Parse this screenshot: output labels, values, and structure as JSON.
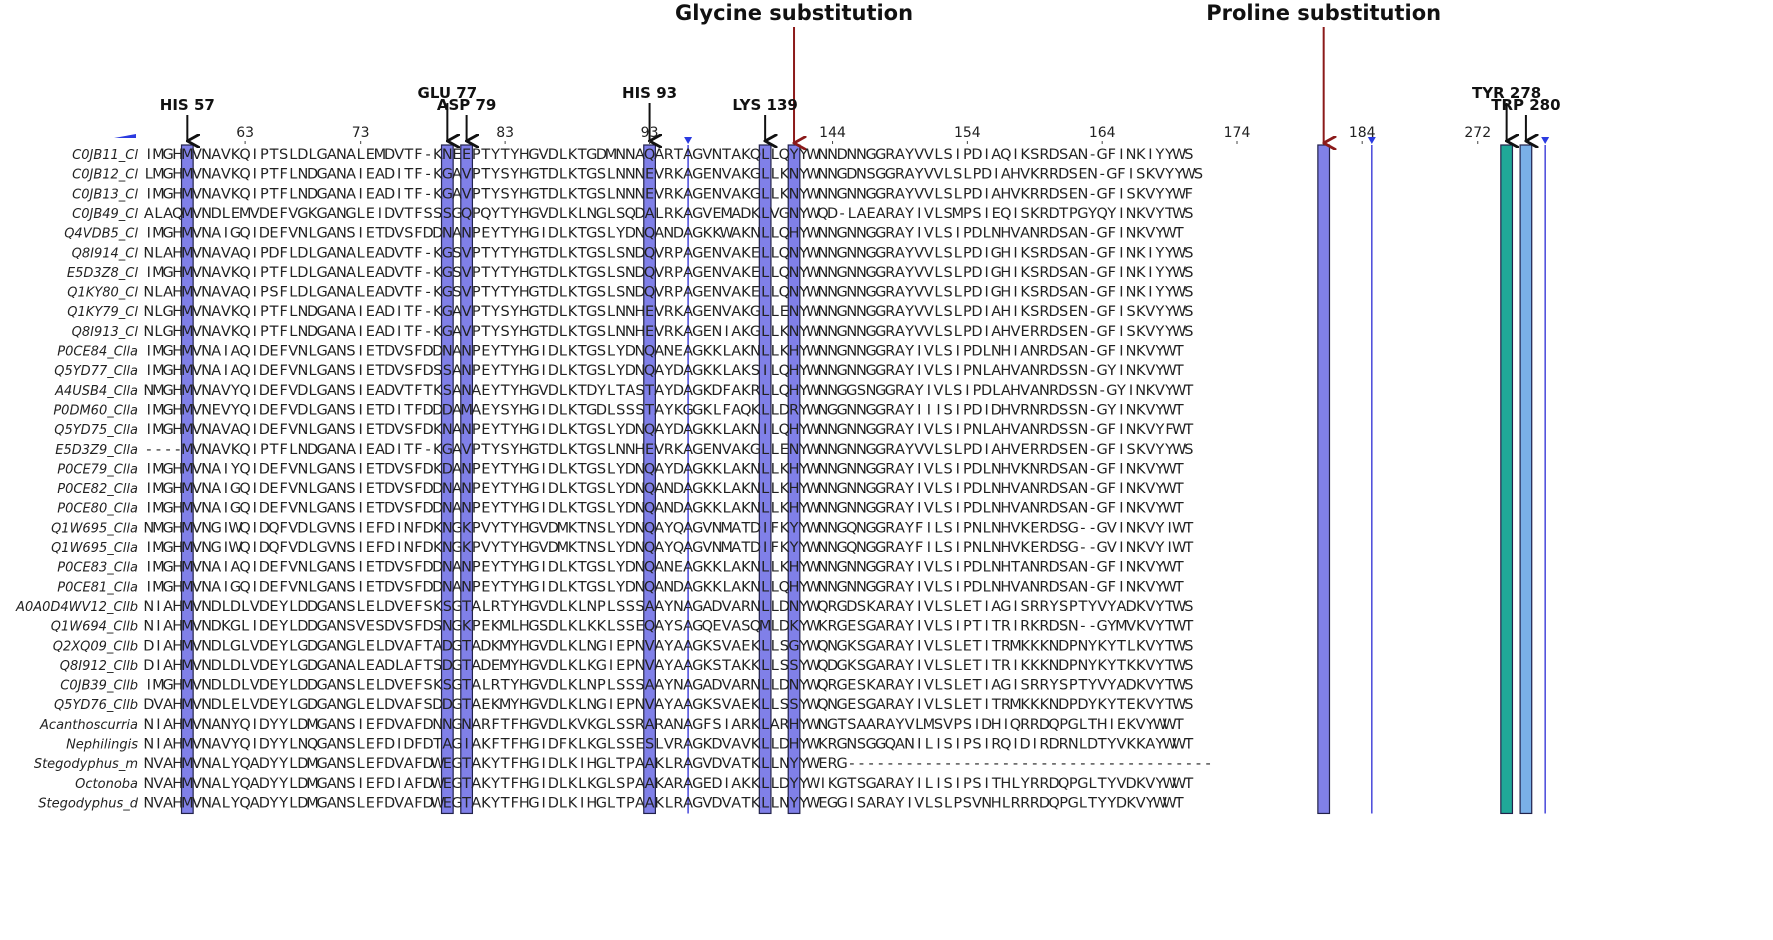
{
  "headers": [
    {
      "label": "Glycine substitution",
      "col": 67,
      "arrow_color": "#8b1a1a"
    },
    {
      "label": "Proline substitution",
      "col": 122,
      "arrow_color": "#8b1a1a"
    }
  ],
  "residue_labels": [
    {
      "label": "HIS 57",
      "col": 4
    },
    {
      "label": "GLU 77",
      "col": 31
    },
    {
      "label": "ASP 79",
      "col": 33
    },
    {
      "label": "HIS 93",
      "col": 52
    },
    {
      "label": "LYS 139",
      "col": 64
    },
    {
      "label": "TYR 278",
      "col": 141
    },
    {
      "label": "TRP 280",
      "col": 143
    }
  ],
  "ruler": [
    {
      "label": "63",
      "col": 10
    },
    {
      "label": "73",
      "col": 22
    },
    {
      "label": "83",
      "col": 37
    },
    {
      "label": "93",
      "col": 52
    },
    {
      "label": "144",
      "col": 71
    },
    {
      "label": "154",
      "col": 85
    },
    {
      "label": "164",
      "col": 99
    },
    {
      "label": "174",
      "col": 113
    },
    {
      "label": "184",
      "col": 126
    },
    {
      "label": "272",
      "col": 138
    }
  ],
  "highlight_columns": [
    {
      "col": 4,
      "color": "#8080e8"
    },
    {
      "col": 31,
      "color": "#8080e8"
    },
    {
      "col": 33,
      "color": "#8080e8"
    },
    {
      "col": 52,
      "color": "#8080e8"
    },
    {
      "col": 64,
      "color": "#8080e8"
    },
    {
      "col": 67,
      "color": "#8080e8"
    },
    {
      "col": 122,
      "color": "#8080e8"
    },
    {
      "col": 141,
      "color": "#20a898"
    },
    {
      "col": 143,
      "color": "#7ab0e8"
    }
  ],
  "separator_columns": [
    56,
    127,
    145
  ],
  "sequences": [
    {
      "name": "C0JB11_Cl",
      "seq": "IMGHMVNAVKQIPTSLDLGANALEMDVTF-KNEEPTYTYHGVDLKTGDMNNAQARTAGVNTAKQLLQYYWNNDNNGGRAYVVLSIPDIAQIKSRDSAN-GFINKIYYWS"
    },
    {
      "name": "C0JB12_Cl",
      "seq": "LMGHMVNAVKQIPTFLNDGANAIEADITF-KGAVPTYSYHGTDLKTGSLNNNEVRKAGENVAKGLLKNYWNNGDNSGGRAYVVLSLPDIAHVKRRDSEN-GFISKVYYWS"
    },
    {
      "name": "C0JB13_Cl",
      "seq": "IMGHMVNAVKQIPTFLNDGANAIEADITF-KGAVPTYSYHGTDLKTGSLNNNEVRKAGENVAKGLLKNYWNNGNNGGRAYVVLSLPDIAHVKRRDSEN-GFISKVYYWF"
    },
    {
      "name": "C0JB49_Cl",
      "seq": "ALAQMVNDLEMVDEFVGKGANGLEIDVTFSSSGQPQYTYHGVDLKLNGLSQDALRKAGVEMADKLVGNYWQD-LAEARAYIVLSMPSIEQISKRDTPGYQYINKVYTWS"
    },
    {
      "name": "Q4VDB5_Cl",
      "seq": "IMGHMVNAIGQIDEFVNLGANSIETDVSFDDNANPEYTYHGIDLKTGSLYDNQANDAGKKWAKNLLQHYWNNGNNGGRAYIVLSIPDLNHVANRDSAN-GFINKVYWT"
    },
    {
      "name": "Q8I914_Cl",
      "seq": "NLAHMVNAVAQIPDFLDLGANALEADVTF-KGSVPTYTYHGTDLKTGSLSNDQVRPAGENVAKELLQNYWNNGNNGGRAYVVLSLPDIGHIKSRDSAN-GFINKIYYWS"
    },
    {
      "name": "E5D3Z8_Cl",
      "seq": "IMGHMVNAVKQIPTFLDLGANALEADVTF-KGSVPTYTYHGTDLKTGSLSNDQVRPAGENVAKELLQNYWNNGNNGGRAYVVLSLPDIGHIKSRDSAN-GFINKIYYWS"
    },
    {
      "name": "Q1KY80_Cl",
      "seq": "NLAHMVNAVAQIPSFLDLGANALEADVTF-KGSVPTYTYHGTDLKTGSLSNDQVRPAGENVAKELLQNYWNNGNNGGRAYVVLSLPDIGHIKSRDSAN-GFINKIYYWS"
    },
    {
      "name": "Q1KY79_Cl",
      "seq": "NLGHMVNAVKQIPTFLNDGANAIEADITF-KGAVPTYSYHGTDLKTGSLNNHEVRKAGENVAKGLLENYWNNGNNGGRAYVVLSLPDIAHIKSRDSEN-GFISKVYYWS"
    },
    {
      "name": "Q8I913_Cl",
      "seq": "NLGHMVNAVKQIPTFLNDGANAIEADITF-KGAVPTYSYHGTDLKTGSLNNHEVRKAGENIAKGLLKNYWNNGNNGGRAYVVLSLPDIAHVERRDSEN-GFISKVYYWS"
    },
    {
      "name": "P0CE84_Clla",
      "seq": "IMGHMVNAIAQIDEFVNLGANSIETDVSFDDNANPEYTYHGIDLKTGSLYDNQANEAGKKLAKNLLKHYWNNGNNGGRAYIVLSIPDLNHIANRDSAN-GFINKVYWT"
    },
    {
      "name": "Q5YD77_Clla",
      "seq": "IMGHMVNAIAQIDEFVNLGANSIETDVSFDSSANPEYTYHGIDLKTGSLYDNQAYDAGKKLAKSILQHYWNNGNNGGRAYIVLSIPNLAHVANRDSSN-GYINKVYWT"
    },
    {
      "name": "A4USB4_Clla",
      "seq": "NMGHMVNAVYQIDEFVDLGANSIEADVTFTKSANAEYTYHGVDLKTDYLTASTAYDAGKDFAKRLLQHYWNNGGSNGGRAYIVLSIPDLAHVANRDSSN-GYINKVYWT"
    },
    {
      "name": "P0DM60_Clla",
      "seq": "IMGHMVNEVYQIDEFVDLGANSIETDITFDDDAMAEYSYHGIDLKTGDLSSSTAYKGGKLFAQKLLDRYWNGGNNGGRAYIIISIPDIDHVRNRDSSN-GYINKVYWT"
    },
    {
      "name": "Q5YD75_Clla",
      "seq": "IMGHMVNAVAQIDEFVNLGANSIETDVSFDKNANPEYTYHGIDLKTGSLYDNQAYDAGKKLAKNILQHYWNNGNNGGRAYIVLSIPNLAHVANRDSSN-GFINKVYFWT"
    },
    {
      "name": "E5D3Z9_Clla",
      "seq": "----MVNAVKQIPTFLNDGANAIEADITF-KGAVPTYSYHGTDLKTGSLNNHEVRKAGENVAKGLLENYWNNGNNGGRAYVVLSLPDIAHVERRDSEN-GFISKVYYWS"
    },
    {
      "name": "P0CE79_Clla",
      "seq": "IMGHMVNAIYQIDEFVNLGANSIETDVSFDKDANPEYTYHGIDLKTGSLYDNQAYDAGKKLAKNLLKHYWNNGNNGGRAYIVLSIPDLNHVKNRDSAN-GFINKVYWT"
    },
    {
      "name": "P0CE82_Clla",
      "seq": "IMGHMVNAIGQIDEFVNLGANSIETDVSFDDNANPEYTYHGIDLKTGSLYDNQANDAGKKLAKNLLKHYWNNGNNGGRAYIVLSIPDLNHVANRDSAN-GFINKVYWT"
    },
    {
      "name": "P0CE80_Clla",
      "seq": "IMGHMVNAIGQIDEFVNLGANSIETDVSFDDNANPEYTYHGIDLKTGSLYDNQANDAGKKLAKNLLKHYWNNGNNGGRAYIVLSIPDLNHVANRDSAN-GFINKVYWT"
    },
    {
      "name": "Q1W695_Clla",
      "seq": "NMGHMVNGIWQIDQFVDLGVNSIEFDINFDKNGKPVYTYHGVDMKTNSLYDNQAYQAGVNMATDIFKYYWNNGQNGGRAYFILSIPNLNHVKERDSG--GVINKVYIWT"
    },
    {
      "name": "Q1W695_Clla",
      "seq": "IMGHMVNGIWQIDQFVDLGVNSIEFDINFDKNGKPVYTYHGVDMKTNSLYDNQAYQAGVNMATDIFKYYWNNGQNGGRAYFILSIPNLNHVKERDSG--GVINKVYIWT"
    },
    {
      "name": "P0CE83_Clla",
      "seq": "IMGHMVNAIAQIDEFVNLGANSIETDVSFDDNANPEYTYHGIDLKTGSLYDNQANEAGKKLAKNLLKHYWNNGNNGGRAYIVLSIPDLNHTANRDSAN-GFINKVYWT"
    },
    {
      "name": "P0CE81_Clla",
      "seq": "IMGHMVNAIGQIDEFVNLGANSIETDVSFDDNANPEYTYHGIDLKTGSLYDNQANDAGKKLAKNLLQHYWNNGNNGGRAYIVLSIPDLNHVANRDSAN-GFINKVYWT"
    },
    {
      "name": "A0A0D4WV12_Cllb",
      "seq": "NIAHMVNDLDLVDEYLDDGANSLELDVEFSKSGTALRTYHGVDLKLNPLSSSAAYNAGADVARNLLDNYWQRGDSKARAYIVLSLETIAGISRRYSPTYVYADKVYTWS"
    },
    {
      "name": "Q1W694_Cllb",
      "seq": "NIAHMVNDKGLIDEYLDDGANSVESDVSFDSNGKPEKMLHGSDLKLKKLSSEQAYSAGQEVASQMLDKYWKRGESGARAYIVLSIPTITRIRKRDSN--GYMVKVYTWT"
    },
    {
      "name": "Q2XQ09_Cllb",
      "seq": "DIAHMVNDLGLVDEYLGDGANGLELDVAFTADGTADKMYHGVDLKLNGIEPNVAYAAGKSVAEKLLSGYWQNGKSGARAYIVLSLETITRMKKKNDPNYKYTLKVYTWS"
    },
    {
      "name": "Q8I912_Cllb",
      "seq": "DIAHMVNDLDLVDEYLGDGANALEADLAFTSDGTADEMYHGVDLKLKGIEPNVAYAAGKSTAKKLLSSYWQDGKSGARAYIVLSLETITRIKKKNDPNYKYTKKVYTWS"
    },
    {
      "name": "C0JB39_Cllb",
      "seq": "IMGHMVNDLDLVDEYLDDGANSLELDVEFSKSGTALRTYHGVDLKLNPLSSSAAYNAGADVARNLLDNYWQRGESKARAYIVLSLETIAGISRRYSPTYVYADKVYTWS"
    },
    {
      "name": "Q5YD76_Cllb",
      "seq": "DVAHMVNDLELVDEYLGDGANGLELDVAFSDDGTAEKMYHGVDLKLNGIEPNVAYAAGKSVAEKLLSSYWQNGESGARAYIVLSLETITRMKKKNDPDYKYTEKVYTWS"
    },
    {
      "name": "Acanthoscurria",
      "seq": "NIAHMVNANYQIDYYLDMGANSIEFDVAFDNNGNARFTFHGVDLKVKGLSSRARANAGFSIARKLARHYWNGTSAARAYVLMSVPSIDHIQRRDQPGLTHIEKVYWWT"
    },
    {
      "name": "Nephilingis",
      "seq": "NIAHMVNAVYQIDYYLNQGANSLEFDIDFDTAGIAKFTFHGIDFKLKGLSSESLVRAGKDVAVKLLDHYWKRGNSGGQANILISIPSIRQIDIRDRNLDTYVKKAYWWT"
    },
    {
      "name": "Stegodyphus_m",
      "seq": "NVAHMVNALYQADYYLDMGANSLEFDVAFDWEGTAKYTFHGIDLKIHGLTPAAKLRAGVDVATKLLNYYWERG--------------------------------------"
    },
    {
      "name": "Octonoba",
      "seq": "NVAHMVNALYQADYYLDMGANSIEFDIAFDWEGTAKYTFHGIDLKLKGLSPAAKARAGEDIAKKLLDYYWIKGTSGARAYILISIPSITHLYRRDQPGLTYVDKVYWWT"
    },
    {
      "name": "Stegodyphus_d",
      "seq": "NVAHMVNALYQADYYLDMGANSLEFDVAFDWEGTAKYTFHGIDLKIHGLTPAAKLRAGVDVATKLLNYYWEGGISARAYIVLSLPSVNHLRRRDQPGLTYYDKVYWWT"
    }
  ]
}
